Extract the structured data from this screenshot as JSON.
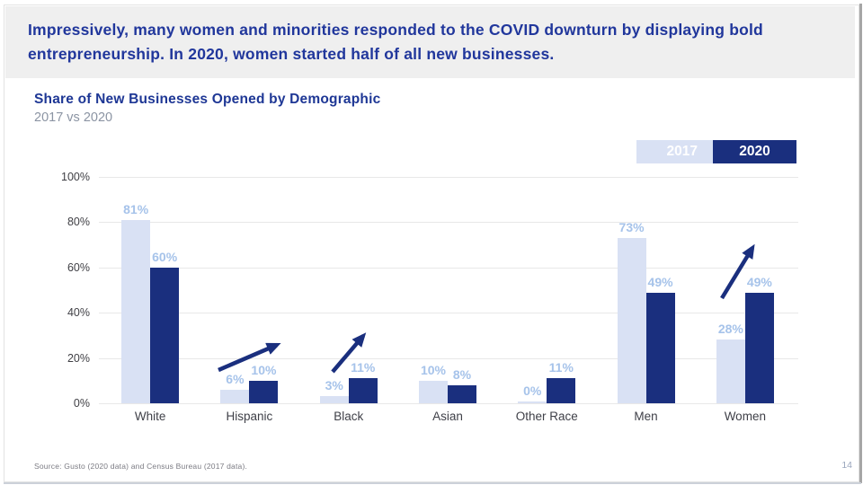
{
  "slide": {
    "header": {
      "line1": "Impressively, many women and minorities responded to the COVID downturn by displaying bold",
      "line2": "entrepreneurship. In 2020, women started half of all new businesses."
    },
    "source": "Source: Gusto (2020 data) and Census Bureau (2017 data).",
    "page_number": "14"
  },
  "chart": {
    "title": "Share of New Businesses Opened by Demographic",
    "subtitle": "2017 vs 2020"
  },
  "chart_data": {
    "type": "bar",
    "title": "Share of New Businesses Opened by Demographic",
    "subtitle": "2017 vs 2020",
    "categories": [
      "White",
      "Hispanic",
      "Black",
      "Asian",
      "Other Race",
      "Men",
      "Women"
    ],
    "series": [
      {
        "name": "2017",
        "color": "#d9e1f4",
        "values": [
          81,
          6,
          3,
          10,
          0,
          73,
          28
        ]
      },
      {
        "name": "2020",
        "color": "#1a2f7e",
        "values": [
          60,
          10,
          11,
          8,
          11,
          49,
          49
        ]
      }
    ],
    "value_label_suffix": "%",
    "y_ticks": [
      "0%",
      "20%",
      "40%",
      "60%",
      "80%",
      "100%"
    ],
    "ylim": [
      0,
      100
    ],
    "grid": true,
    "legend_position": "top-right",
    "increase_arrows_over": [
      "Hispanic",
      "Black",
      "Women"
    ]
  },
  "colors": {
    "navy": "#1a2f7e",
    "light_blue_bar": "#d9e1f4",
    "value_label": "#a6c3ea",
    "header_blue": "#21379c",
    "title_blue": "#1e3795",
    "subtitle_gray": "#8b94a3",
    "axis_text": "#3f3f44",
    "gridline": "#e8e8e8",
    "band_gray": "#efefef"
  }
}
